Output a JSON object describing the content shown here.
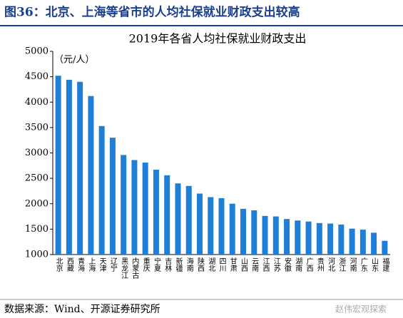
{
  "header": "图36：北京、上海等省市的人均社保就业财政支出较高",
  "source": "数据来源：Wind、开源证券研究所",
  "watermark": "赵伟宏观探索",
  "chart_data": {
    "type": "bar",
    "title": "2019年各省人均社保就业财政支出",
    "unit_label": "（元/人）",
    "categories": [
      "北京",
      "西藏",
      "青海",
      "上海",
      "天津",
      "辽宁",
      "黑龙江",
      "内蒙古",
      "重庆",
      "宁夏",
      "吉林",
      "新疆",
      "海南",
      "陕西",
      "湖北",
      "四川",
      "甘肃",
      "山西",
      "云南",
      "江西",
      "江苏",
      "安徽",
      "湖南",
      "广西",
      "贵州",
      "河北",
      "浙江",
      "河南",
      "广东",
      "山东",
      "福建"
    ],
    "values": [
      4520,
      4440,
      4400,
      4120,
      3530,
      3300,
      2960,
      2860,
      2810,
      2670,
      2560,
      2400,
      2350,
      2200,
      2130,
      2110,
      2000,
      1900,
      1870,
      1760,
      1750,
      1700,
      1670,
      1650,
      1620,
      1610,
      1590,
      1510,
      1490,
      1430,
      1270
    ],
    "color": "#1f7fd6",
    "ylim": [
      1000,
      5000
    ],
    "yticks": [
      1000,
      1500,
      2000,
      2500,
      3000,
      3500,
      4000,
      4500,
      5000
    ],
    "grid": false
  }
}
